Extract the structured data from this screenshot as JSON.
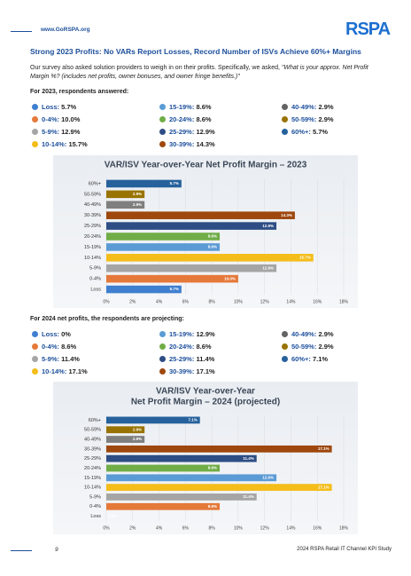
{
  "header": {
    "url": "www.GoRSPA.org",
    "logo": "RSPA"
  },
  "headline": "Strong 2023 Profits: No VARs Report Losses, Record Number of ISVs Achieve 60%+ Margins",
  "intro": {
    "text": "Our survey also asked solution providers to weigh in on their profits. Specifically, we asked, ",
    "quote": "\"What is your approx. Net Profit Margin %? (includes net profits, owner bonuses, and owner fringe benefits.)\""
  },
  "section_2023": "For 2023, respondents answered:",
  "legend_2023": [
    {
      "label": "Loss:",
      "value": "5.7%",
      "color": "#3f7fcf"
    },
    {
      "label": "0-4%:",
      "value": "10.0%",
      "color": "#e5793a"
    },
    {
      "label": "5-9%:",
      "value": "12.9%",
      "color": "#a5a5a5"
    },
    {
      "label": "10-14%:",
      "value": "15.7%",
      "color": "#f4bd1a"
    },
    {
      "label": "15-19%:",
      "value": "8.6%",
      "color": "#5b9bd5"
    },
    {
      "label": "20-24%:",
      "value": "8.6%",
      "color": "#70ad47"
    },
    {
      "label": "25-29%:",
      "value": "12.9%",
      "color": "#2e4d85"
    },
    {
      "label": "30-39%:",
      "value": "14.3%",
      "color": "#9e480e"
    },
    {
      "label": "40-49%:",
      "value": "2.9%",
      "color": "#636363"
    },
    {
      "label": "50-59%:",
      "value": "2.9%",
      "color": "#997300"
    },
    {
      "label": "60%+:",
      "value": "5.7%",
      "color": "#26619c"
    }
  ],
  "section_2024": "For 2024 net profits, the respondents are projecting:",
  "legend_2024": [
    {
      "label": "Loss:",
      "value": "0%",
      "color": "#3f7fcf"
    },
    {
      "label": "0-4%:",
      "value": "8.6%",
      "color": "#e5793a"
    },
    {
      "label": "5-9%:",
      "value": "11.4%",
      "color": "#a5a5a5"
    },
    {
      "label": "10-14%:",
      "value": "17.1%",
      "color": "#f4bd1a"
    },
    {
      "label": "15-19%:",
      "value": "12.9%",
      "color": "#5b9bd5"
    },
    {
      "label": "20-24%:",
      "value": "8.6%",
      "color": "#70ad47"
    },
    {
      "label": "25-29%:",
      "value": "11.4%",
      "color": "#2e4d85"
    },
    {
      "label": "30-39%:",
      "value": "17.1%",
      "color": "#9e480e"
    },
    {
      "label": "40-49%:",
      "value": "2.9%",
      "color": "#636363"
    },
    {
      "label": "50-59%:",
      "value": "2.9%",
      "color": "#997300"
    },
    {
      "label": "60%+:",
      "value": "7.1%",
      "color": "#26619c"
    }
  ],
  "chart_data": [
    {
      "type": "hbar",
      "title": [
        "VAR/ISV Year-over-Year Net Profit Margin – 2023"
      ],
      "categories": [
        "60%+",
        "50-59%",
        "40-49%",
        "30-39%",
        "25-29%",
        "20-24%",
        "15-19%",
        "10-14%",
        "5-9%",
        "0-4%",
        "Loss"
      ],
      "values": [
        5.7,
        2.9,
        2.9,
        14.3,
        12.9,
        8.6,
        8.6,
        15.7,
        12.9,
        10.0,
        5.7
      ],
      "value_labels": [
        "5.7%",
        "2.9%",
        "2.9%",
        "14.3%",
        "12.9%",
        "8.6%",
        "8.6%",
        "15.7%",
        "12.9%",
        "10.0%",
        "5.7%"
      ],
      "colors": [
        "#26619c",
        "#997300",
        "#7f7f7f",
        "#9e480e",
        "#2e4d85",
        "#70ad47",
        "#5b9bd5",
        "#f4bd1a",
        "#a5a5a5",
        "#e5793a",
        "#3f7fcf"
      ],
      "xlim": [
        0,
        18
      ],
      "xticks": [
        {
          "value": 0,
          "label": "0%"
        },
        {
          "value": 2,
          "label": "2%"
        },
        {
          "value": 4,
          "label": "4%"
        },
        {
          "value": 6,
          "label": "6%"
        },
        {
          "value": 8,
          "label": "8%"
        },
        {
          "value": 10,
          "label": "10%"
        },
        {
          "value": 12,
          "label": "12%"
        },
        {
          "value": 14,
          "label": "14%"
        },
        {
          "value": 16,
          "label": "16%"
        },
        {
          "value": 18,
          "label": "18%"
        }
      ],
      "grid": true
    },
    {
      "type": "hbar",
      "title": [
        "VAR/ISV Year-over-Year",
        "Net Profit Margin – 2024 (projected)"
      ],
      "categories": [
        "60%+",
        "50-59%",
        "40-49%",
        "30-39%",
        "25-29%",
        "20-24%",
        "15-19%",
        "10-14%",
        "5-9%",
        "0-4%",
        "Loss"
      ],
      "values": [
        7.1,
        2.9,
        2.9,
        17.1,
        11.4,
        8.6,
        12.9,
        17.1,
        11.4,
        8.6,
        0.0
      ],
      "value_labels": [
        "7.1%",
        "2.9%",
        "2.9%",
        "17.1%",
        "11.4%",
        "8.6%",
        "12.9%",
        "17.1%",
        "11.4%",
        "8.6%",
        "0.0%"
      ],
      "colors": [
        "#26619c",
        "#997300",
        "#7f7f7f",
        "#9e480e",
        "#2e4d85",
        "#70ad47",
        "#5b9bd5",
        "#f4bd1a",
        "#a5a5a5",
        "#e5793a",
        "#3f7fcf"
      ],
      "xlim": [
        0,
        18
      ],
      "xticks": [
        {
          "value": 0,
          "label": "0%"
        },
        {
          "value": 2,
          "label": "2%"
        },
        {
          "value": 4,
          "label": "4%"
        },
        {
          "value": 6,
          "label": "6%"
        },
        {
          "value": 8,
          "label": "8%"
        },
        {
          "value": 10,
          "label": "10%"
        },
        {
          "value": 12,
          "label": "12%"
        },
        {
          "value": 14,
          "label": "14%"
        },
        {
          "value": 16,
          "label": "16%"
        },
        {
          "value": 18,
          "label": "18%"
        }
      ],
      "grid": true
    }
  ],
  "footer": {
    "page": "9",
    "study": "2024 RSPA Retail IT Channel KPI Study"
  }
}
